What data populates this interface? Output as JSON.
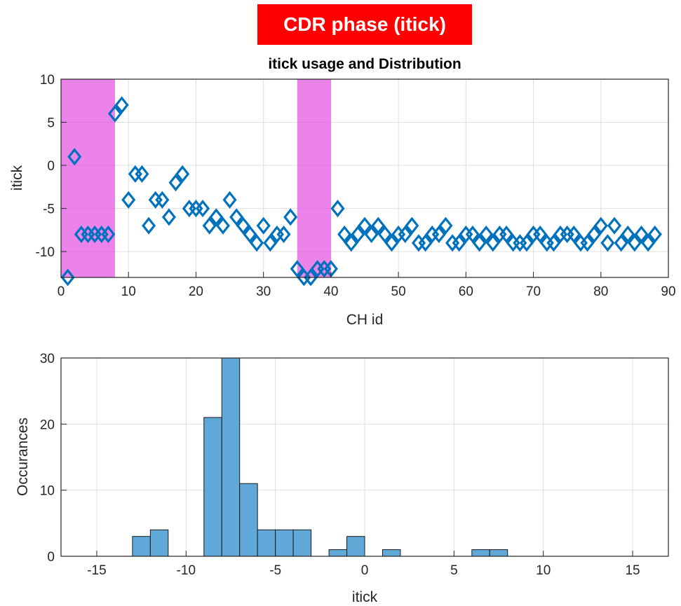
{
  "banner": {
    "text": "CDR phase (itick)",
    "background": "#ff0000",
    "color": "#ffffff"
  },
  "chart_data": [
    {
      "type": "scatter",
      "title": "itick usage and Distribution",
      "xlabel": "CH id",
      "ylabel": "itick",
      "xlim": [
        0,
        90
      ],
      "ylim": [
        -13,
        10
      ],
      "xticks": [
        0,
        10,
        20,
        30,
        40,
        50,
        60,
        70,
        80,
        90
      ],
      "yticks": [
        -10,
        -5,
        0,
        5,
        10
      ],
      "grid": true,
      "marker": "diamond-open",
      "marker_color": "#0072bd",
      "highlight_color": "#e040e0",
      "highlight_ranges": [
        [
          0,
          8
        ],
        [
          35,
          40
        ]
      ],
      "series": [
        {
          "x": [
            1,
            2,
            3,
            4,
            5,
            6,
            7,
            8,
            9,
            10,
            11,
            12,
            13,
            14,
            15,
            16,
            17,
            18,
            19,
            20,
            21,
            22,
            23,
            24,
            25,
            26,
            27,
            28,
            29,
            30,
            31,
            32,
            33,
            34,
            35,
            36,
            37,
            38,
            39,
            40,
            41,
            42,
            43,
            44,
            45,
            46,
            47,
            48,
            49,
            50,
            51,
            52,
            53,
            54,
            55,
            56,
            57,
            58,
            59,
            60,
            61,
            62,
            63,
            64,
            65,
            66,
            67,
            68,
            69,
            70,
            71,
            72,
            73,
            74,
            75,
            76,
            77,
            78,
            79,
            80,
            81,
            82,
            83,
            84,
            85,
            86,
            87,
            88
          ],
          "y": [
            -13,
            1,
            -8,
            -8,
            -8,
            -8,
            -8,
            6,
            7,
            -4,
            -1,
            -1,
            -7,
            -4,
            -4,
            -6,
            -2,
            -1,
            -5,
            -5,
            -5,
            -7,
            -6,
            -7,
            -4,
            -6,
            -7,
            -8,
            -9,
            -7,
            -9,
            -8,
            -8,
            -6,
            -12,
            -13,
            -13,
            -12,
            -12,
            -12,
            -5,
            -8,
            -9,
            -8,
            -7,
            -8,
            -7,
            -8,
            -9,
            -8,
            -8,
            -7,
            -9,
            -9,
            -8,
            -8,
            -7,
            -9,
            -9,
            -8,
            -8,
            -9,
            -8,
            -9,
            -8,
            -8,
            -9,
            -9,
            -9,
            -8,
            -8,
            -9,
            -9,
            -8,
            -8,
            -8,
            -9,
            -9,
            -8,
            -7,
            -9,
            -7,
            -9,
            -8,
            -9,
            -8,
            -9,
            -8
          ]
        }
      ]
    },
    {
      "type": "bar",
      "subtype": "histogram",
      "xlabel": "itick",
      "ylabel": "Occurances",
      "xlim": [
        -17,
        17
      ],
      "ylim": [
        0,
        30
      ],
      "xticks": [
        -15,
        -10,
        -5,
        0,
        5,
        10,
        15
      ],
      "yticks": [
        0,
        10,
        20,
        30
      ],
      "grid": true,
      "bar_color": "#5fa8d8",
      "bin_edges": [
        -16,
        -15,
        -14,
        -13,
        -12,
        -11,
        -10,
        -9,
        -8,
        -7,
        -6,
        -5,
        -4,
        -3,
        -2,
        -1,
        0,
        1,
        2,
        3,
        4,
        5,
        6,
        7,
        8,
        9,
        10,
        11,
        12,
        13,
        14,
        15,
        16
      ],
      "values": [
        0,
        0,
        0,
        3,
        4,
        0,
        0,
        21,
        30,
        11,
        4,
        4,
        4,
        0,
        1,
        3,
        0,
        1,
        0,
        0,
        0,
        0,
        1,
        1,
        0,
        0,
        0,
        0,
        0,
        0,
        0,
        0
      ]
    }
  ]
}
